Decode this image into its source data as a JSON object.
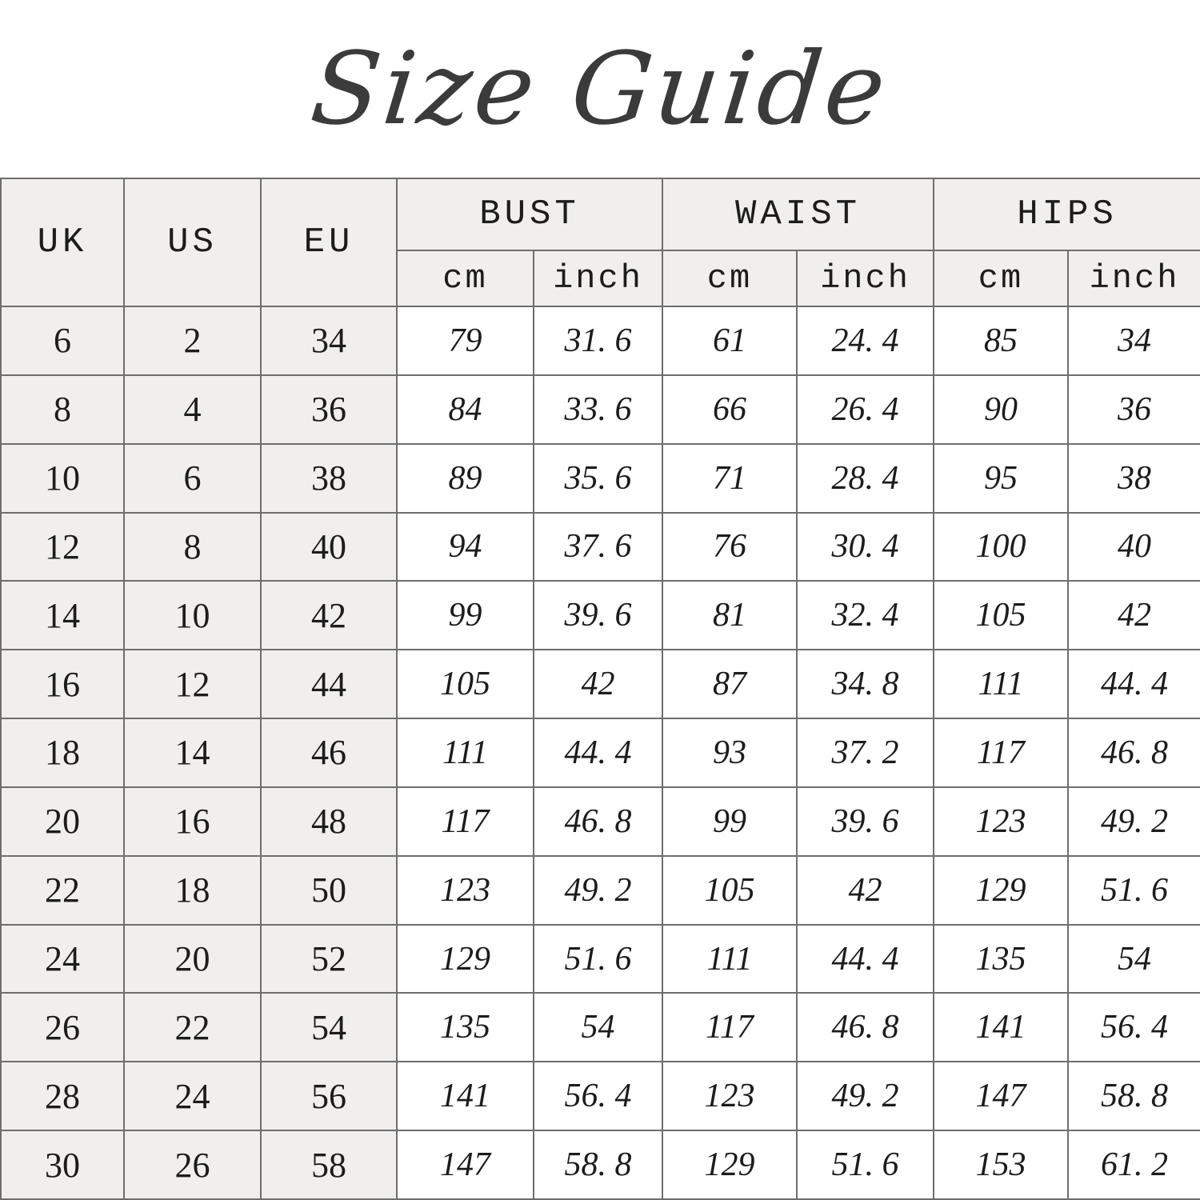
{
  "title": "Size Guide",
  "chart_data": {
    "type": "table",
    "title": "Size Guide",
    "size_columns": [
      "UK",
      "US",
      "EU"
    ],
    "groups": [
      {
        "label": "BUST",
        "units": [
          "cm",
          "inch"
        ]
      },
      {
        "label": "WAIST",
        "units": [
          "cm",
          "inch"
        ]
      },
      {
        "label": "HIPS",
        "units": [
          "cm",
          "inch"
        ]
      }
    ],
    "columns_flat": [
      "UK",
      "US",
      "EU",
      "BUST cm",
      "BUST inch",
      "WAIST cm",
      "WAIST inch",
      "HIPS cm",
      "HIPS inch"
    ],
    "rows": [
      [
        "6",
        "2",
        "34",
        "79",
        "31. 6",
        "61",
        "24. 4",
        "85",
        "34"
      ],
      [
        "8",
        "4",
        "36",
        "84",
        "33. 6",
        "66",
        "26. 4",
        "90",
        "36"
      ],
      [
        "10",
        "6",
        "38",
        "89",
        "35. 6",
        "71",
        "28. 4",
        "95",
        "38"
      ],
      [
        "12",
        "8",
        "40",
        "94",
        "37. 6",
        "76",
        "30. 4",
        "100",
        "40"
      ],
      [
        "14",
        "10",
        "42",
        "99",
        "39. 6",
        "81",
        "32. 4",
        "105",
        "42"
      ],
      [
        "16",
        "12",
        "44",
        "105",
        "42",
        "87",
        "34. 8",
        "111",
        "44. 4"
      ],
      [
        "18",
        "14",
        "46",
        "111",
        "44. 4",
        "93",
        "37. 2",
        "117",
        "46. 8"
      ],
      [
        "20",
        "16",
        "48",
        "117",
        "46. 8",
        "99",
        "39. 6",
        "123",
        "49. 2"
      ],
      [
        "22",
        "18",
        "50",
        "123",
        "49. 2",
        "105",
        "42",
        "129",
        "51. 6"
      ],
      [
        "24",
        "20",
        "52",
        "129",
        "51. 6",
        "111",
        "44. 4",
        "135",
        "54"
      ],
      [
        "26",
        "22",
        "54",
        "135",
        "54",
        "117",
        "46. 8",
        "141",
        "56. 4"
      ],
      [
        "28",
        "24",
        "56",
        "141",
        "56. 4",
        "123",
        "49. 2",
        "147",
        "58. 8"
      ],
      [
        "30",
        "26",
        "58",
        "147",
        "58. 8",
        "129",
        "51. 6",
        "153",
        "61. 2"
      ]
    ]
  },
  "colors": {
    "header_bg": "#F0EFED",
    "cell_bg": "#FFFFFF",
    "grid_line": "#6E6E6E",
    "text": "#1C1C1C",
    "title_text": "#3B3B3B"
  }
}
